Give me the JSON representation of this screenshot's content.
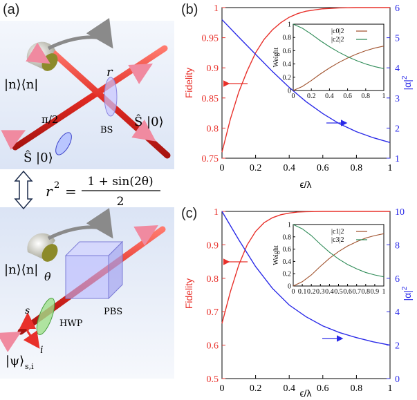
{
  "panel_a": {
    "label": "(a)",
    "top": {
      "proj_label": "|n⟩⟨n|",
      "r_label": "r",
      "phase_label": "π/2",
      "bs_label": "BS",
      "s_in_label_right": "Ŝ |0⟩",
      "s_in_label_left": "Ŝ |0⟩"
    },
    "relation": {
      "lhs": "r",
      "sup": "2",
      "equals": "=",
      "numerator": "1 + sin(2θ)",
      "denominator": "2"
    },
    "bottom": {
      "proj_label": "|n⟩⟨n|",
      "theta_label": "θ",
      "pbs_label": "PBS",
      "hwp_label": "HWP",
      "s_axis": "s",
      "i_axis": "i",
      "state_label": "|ψ⟩",
      "state_sub": "s,i"
    },
    "colors": {
      "beam": "#e8302a",
      "bg_top": "#dbe4f5",
      "bg_bottom": "#f2f5fb"
    }
  },
  "chart_data": [
    {
      "panel": "(b)",
      "type": "line",
      "xlabel": "ϵ/λ",
      "ylabel_left": "Fidelity",
      "ylabel_right": "|α|",
      "ylabel_right_sup": "2",
      "xlim": [
        0,
        1
      ],
      "ylim_left": [
        0.75,
        1
      ],
      "ylim_right": [
        1,
        6
      ],
      "xticks": [
        "0",
        "0.2",
        "0.4",
        "0.6",
        "0.8",
        "1"
      ],
      "yticks_left": [
        "0.75",
        "0.8",
        "0.85",
        "0.9",
        "0.95",
        "1"
      ],
      "yticks_right": [
        "1",
        "2",
        "3",
        "4",
        "5",
        "6"
      ],
      "series": [
        {
          "axis": "left",
          "color": "#e8302a",
          "x": [
            0,
            0.05,
            0.1,
            0.15,
            0.2,
            0.25,
            0.3,
            0.35,
            0.4,
            0.45,
            0.5,
            0.6,
            0.7,
            0.8,
            0.9,
            1.0
          ],
          "y": [
            0.76,
            0.815,
            0.86,
            0.895,
            0.925,
            0.947,
            0.963,
            0.975,
            0.984,
            0.99,
            0.994,
            0.998,
            0.9995,
            1.0,
            1.0,
            1.0
          ]
        },
        {
          "axis": "right",
          "color": "#2a2ae8",
          "x": [
            0,
            0.1,
            0.2,
            0.3,
            0.4,
            0.5,
            0.6,
            0.7,
            0.8,
            0.9,
            1.0
          ],
          "y": [
            5.6,
            5.02,
            4.45,
            3.88,
            3.35,
            2.88,
            2.48,
            2.14,
            1.88,
            1.68,
            1.52
          ]
        }
      ],
      "inset": {
        "ylabel": "Weight",
        "xlim": [
          0,
          1
        ],
        "ylim": [
          0,
          1
        ],
        "xticks": [
          "0",
          "0.2",
          "0.4",
          "0.6",
          "0.8",
          "1"
        ],
        "yticks": [
          "0",
          "0.2",
          "0.4",
          "0.6",
          "0.8",
          "1"
        ],
        "series": [
          {
            "name": "|c0|2",
            "color": "#a0522d",
            "x": [
              0,
              0.1,
              0.2,
              0.3,
              0.4,
              0.5,
              0.6,
              0.7,
              0.8,
              0.9,
              1.0
            ],
            "y": [
              0,
              0.06,
              0.15,
              0.25,
              0.34,
              0.42,
              0.49,
              0.55,
              0.6,
              0.64,
              0.67
            ]
          },
          {
            "name": "|c2|2",
            "color": "#2e8b57",
            "x": [
              0,
              0.1,
              0.2,
              0.3,
              0.4,
              0.5,
              0.6,
              0.7,
              0.8,
              0.9,
              1.0
            ],
            "y": [
              1.0,
              0.94,
              0.85,
              0.75,
              0.66,
              0.58,
              0.51,
              0.45,
              0.4,
              0.36,
              0.33
            ]
          }
        ]
      },
      "annotations": [
        "←",
        "→"
      ]
    },
    {
      "panel": "(c)",
      "type": "line",
      "xlabel": "ϵ/λ",
      "ylabel_left": "Fidelity",
      "ylabel_right": "|α|",
      "ylabel_right_sup": "2",
      "xlim": [
        0,
        1
      ],
      "ylim_left": [
        0.5,
        1
      ],
      "ylim_right": [
        0,
        10
      ],
      "xticks": [
        "0",
        "0.2",
        "0.4",
        "0.6",
        "0.8",
        "1"
      ],
      "yticks_left": [
        "0.5",
        "0.6",
        "0.7",
        "0.8",
        "0.9",
        "1"
      ],
      "yticks_right": [
        "0",
        "2",
        "4",
        "6",
        "8",
        "10"
      ],
      "series": [
        {
          "axis": "left",
          "color": "#e8302a",
          "x": [
            0,
            0.05,
            0.1,
            0.15,
            0.2,
            0.25,
            0.3,
            0.35,
            0.4,
            0.45,
            0.5,
            0.6,
            0.7,
            0.8,
            0.9,
            1.0
          ],
          "y": [
            0.665,
            0.76,
            0.84,
            0.9,
            0.94,
            0.966,
            0.981,
            0.99,
            0.995,
            0.998,
            0.999,
            1.0,
            1.0,
            1.0,
            1.0,
            1.0
          ]
        },
        {
          "axis": "right",
          "color": "#2a2ae8",
          "x": [
            0,
            0.1,
            0.2,
            0.3,
            0.4,
            0.5,
            0.6,
            0.7,
            0.8,
            0.9,
            1.0
          ],
          "y": [
            10.0,
            8.3,
            6.7,
            5.4,
            4.4,
            3.7,
            3.15,
            2.75,
            2.45,
            2.2,
            2.0
          ]
        }
      ],
      "inset": {
        "ylabel": "Weight",
        "xlim": [
          0,
          1
        ],
        "ylim": [
          0,
          1
        ],
        "xticks": [
          "0",
          "0.1",
          "0.2",
          "0.3",
          "0.4",
          "0.5",
          "0.6",
          "0.7",
          "0.8",
          "0.9",
          "1"
        ],
        "yticks": [
          "0",
          "0.2",
          "0.4",
          "0.6",
          "0.8",
          "1"
        ],
        "series": [
          {
            "name": "|c1|2",
            "color": "#a0522d",
            "x": [
              0,
              0.1,
              0.2,
              0.3,
              0.4,
              0.5,
              0.6,
              0.7,
              0.8,
              0.9,
              1.0
            ],
            "y": [
              0,
              0.07,
              0.18,
              0.32,
              0.45,
              0.56,
              0.65,
              0.72,
              0.78,
              0.82,
              0.85
            ]
          },
          {
            "name": "|c3|2",
            "color": "#2e8b57",
            "x": [
              0,
              0.1,
              0.2,
              0.3,
              0.4,
              0.5,
              0.6,
              0.7,
              0.8,
              0.9,
              1.0
            ],
            "y": [
              1.0,
              0.93,
              0.82,
              0.68,
              0.55,
              0.44,
              0.35,
              0.28,
              0.22,
              0.18,
              0.15
            ]
          }
        ]
      },
      "annotations": [
        "←",
        "→"
      ]
    }
  ]
}
